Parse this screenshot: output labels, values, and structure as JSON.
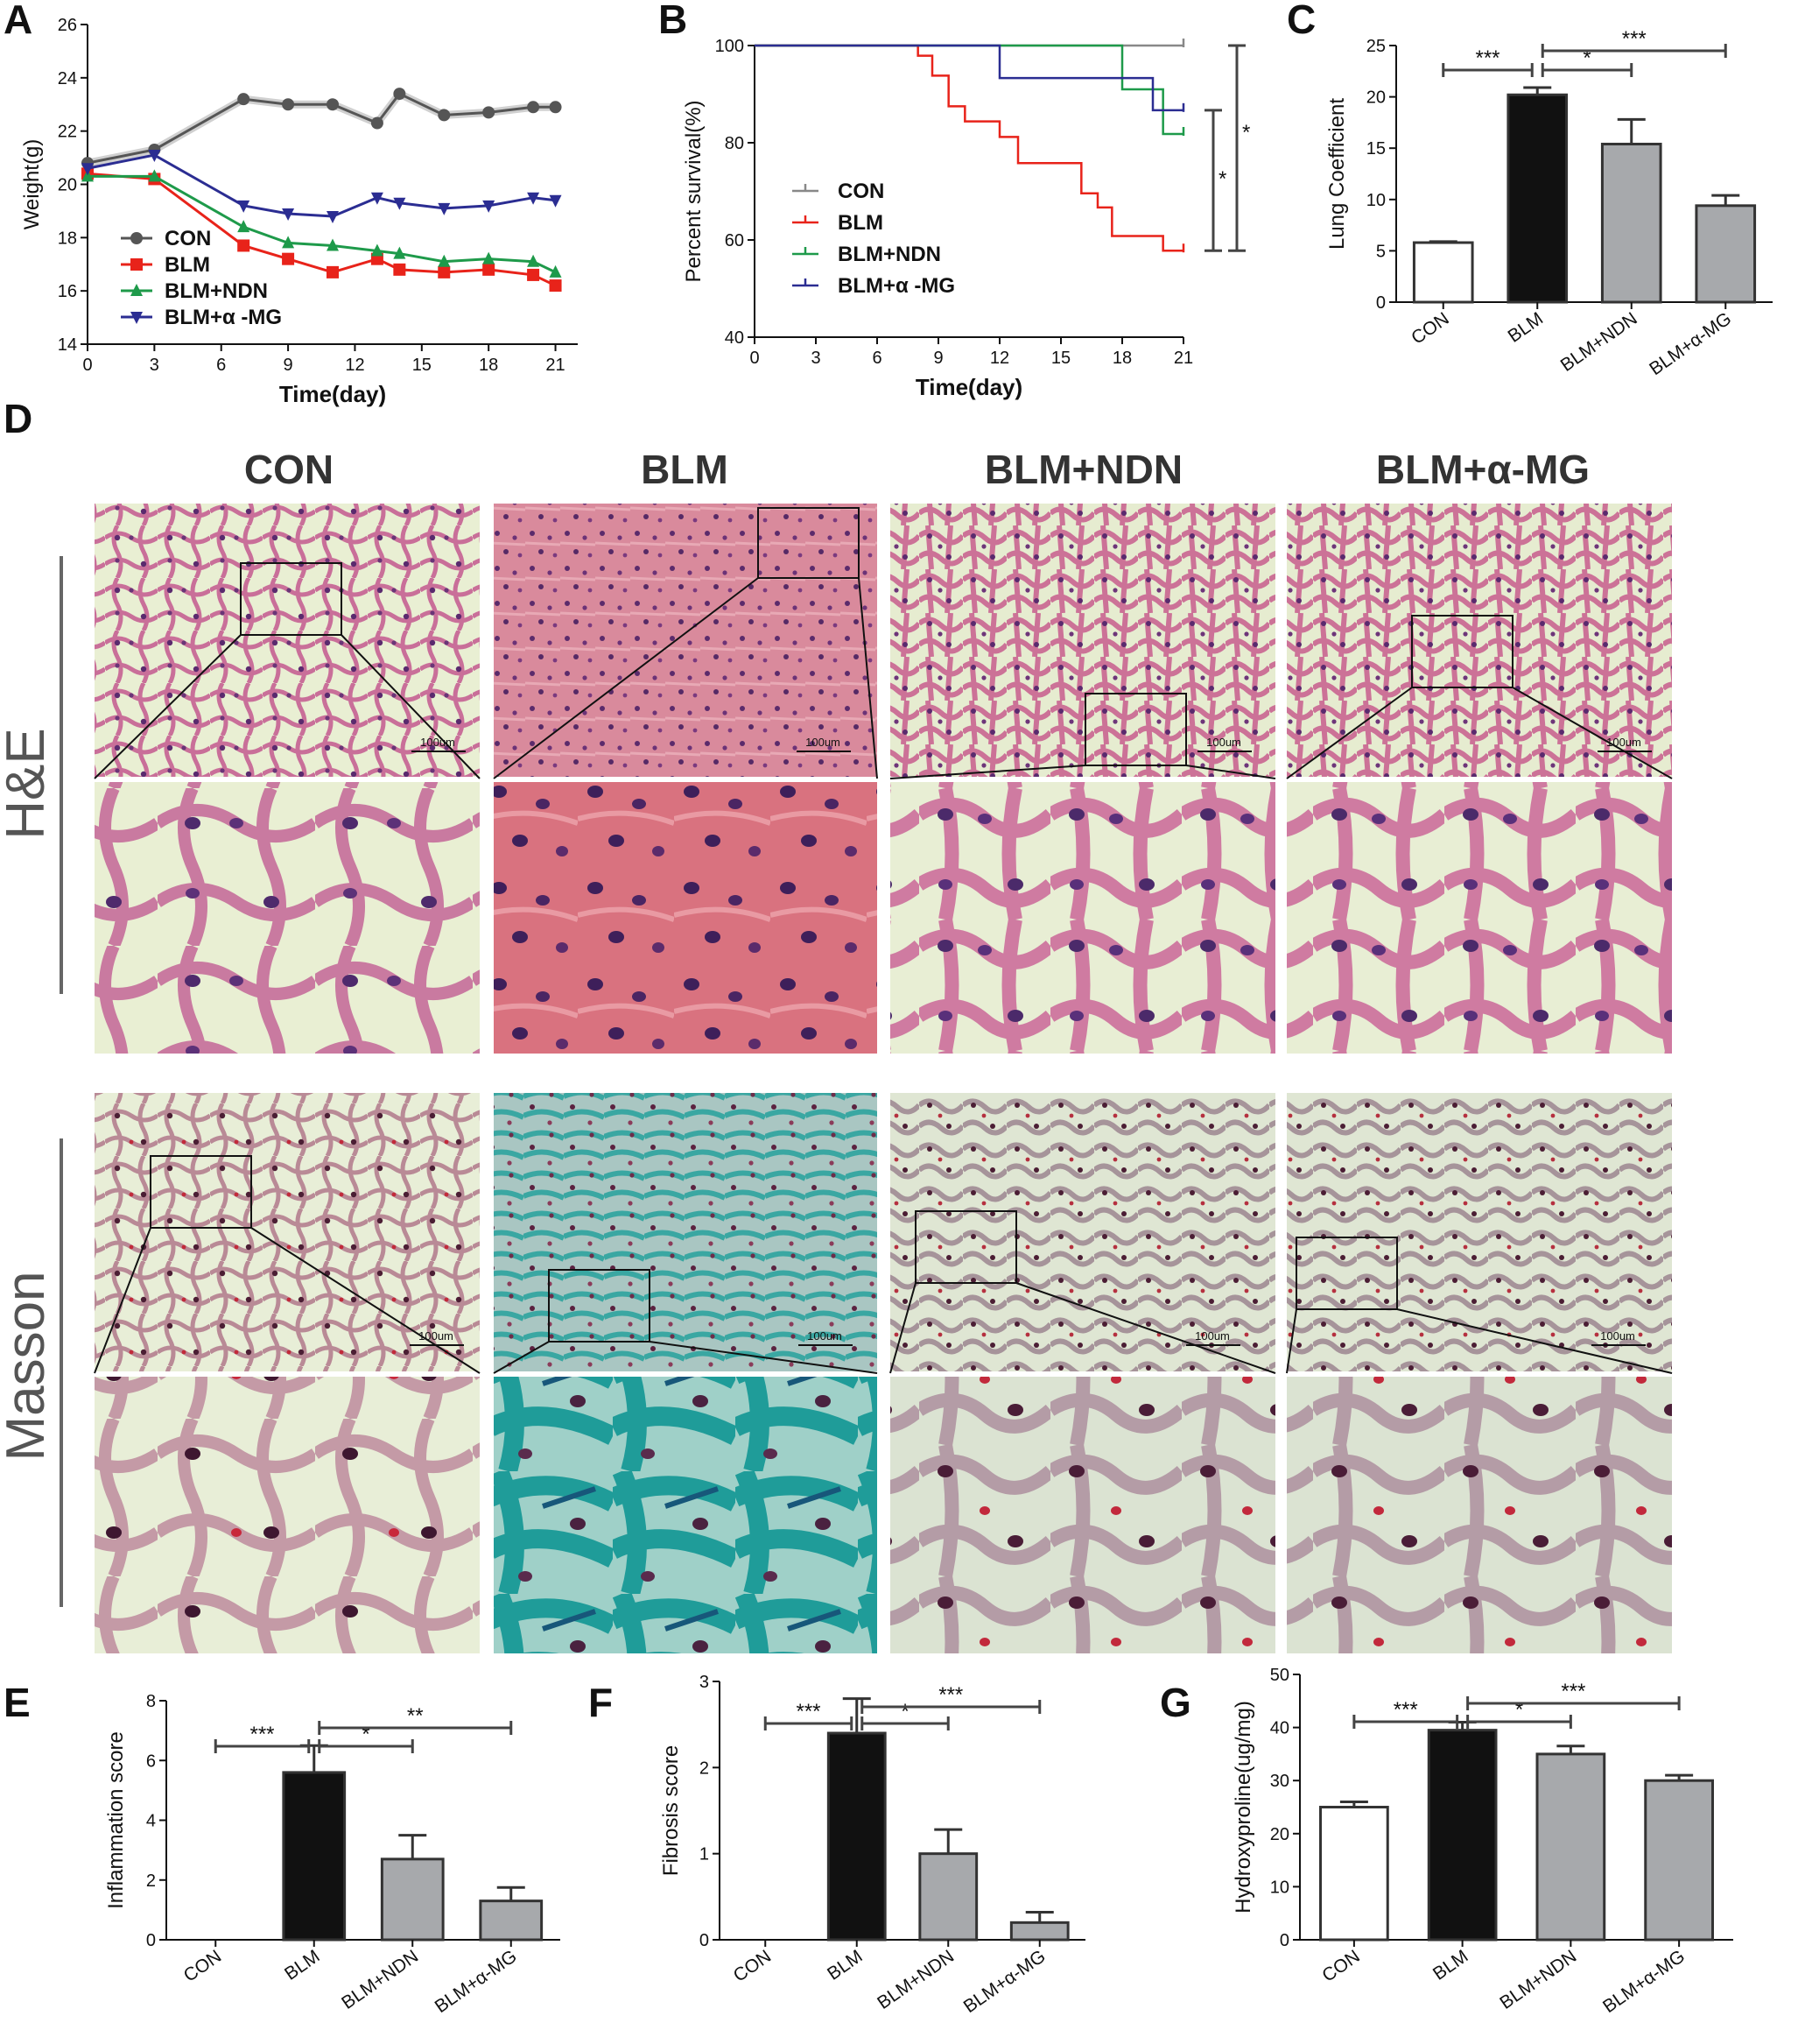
{
  "panels": {
    "A": "A",
    "B": "B",
    "C": "C",
    "D": "D",
    "E": "E",
    "F": "F",
    "G": "G"
  },
  "histology": {
    "columns": [
      "CON",
      "BLM",
      "BLM+NDN",
      "BLM+α-MG"
    ],
    "rows": [
      "H&E",
      "Masson"
    ],
    "scale_bar": "100um"
  },
  "chart_data": [
    {
      "id": "A",
      "type": "line",
      "xlabel": "Time(day)",
      "ylabel": "Weight(g)",
      "xlim": [
        0,
        22
      ],
      "ylim": [
        14,
        26
      ],
      "xticks": [
        0,
        3,
        6,
        9,
        12,
        15,
        18,
        21
      ],
      "yticks": [
        14,
        16,
        18,
        20,
        22,
        24,
        26
      ],
      "legend_position": "lower-left",
      "x": [
        0,
        3,
        7,
        9,
        11,
        13,
        14,
        16,
        18,
        20,
        21
      ],
      "series": [
        {
          "name": "CON",
          "color": "#555555",
          "marker": "circle",
          "values": [
            20.8,
            21.3,
            23.2,
            23.0,
            23.0,
            22.3,
            23.4,
            22.6,
            22.7,
            22.9,
            22.9
          ]
        },
        {
          "name": "BLM",
          "color": "#e8231a",
          "marker": "square",
          "values": [
            20.4,
            20.2,
            17.7,
            17.2,
            16.7,
            17.2,
            16.8,
            16.7,
            16.8,
            16.6,
            16.2
          ]
        },
        {
          "name": "BLM+NDN",
          "color": "#1e9a4a",
          "marker": "triangle-up",
          "values": [
            20.3,
            20.3,
            18.4,
            17.8,
            17.7,
            17.5,
            17.4,
            17.1,
            17.2,
            17.1,
            16.7
          ]
        },
        {
          "name": "BLM+α -MG",
          "color": "#2b2d92",
          "marker": "triangle-down",
          "values": [
            20.6,
            21.1,
            19.2,
            18.9,
            18.8,
            19.5,
            19.3,
            19.1,
            19.2,
            19.5,
            19.4
          ]
        }
      ]
    },
    {
      "id": "B",
      "type": "line",
      "step": true,
      "xlabel": "Time(day)",
      "ylabel": "Percent survival(%)",
      "xlim": [
        0,
        21
      ],
      "ylim": [
        40,
        100
      ],
      "xticks": [
        0,
        3,
        6,
        9,
        12,
        15,
        18,
        21
      ],
      "yticks": [
        40,
        60,
        80,
        100
      ],
      "legend_position": "lower-left",
      "series": [
        {
          "name": "CON",
          "color": "#888888",
          "points": [
            [
              0,
              100
            ],
            [
              21,
              100
            ]
          ]
        },
        {
          "name": "BLM",
          "color": "#e8231a",
          "points": [
            [
              0,
              100
            ],
            [
              8,
              100
            ],
            [
              8,
              97.9
            ],
            [
              8.7,
              97.9
            ],
            [
              8.7,
              93.8
            ],
            [
              9.5,
              93.8
            ],
            [
              9.5,
              87.5
            ],
            [
              10.3,
              87.5
            ],
            [
              10.3,
              84.4
            ],
            [
              12,
              84.4
            ],
            [
              12,
              81.2
            ],
            [
              12.9,
              81.2
            ],
            [
              12.9,
              75.8
            ],
            [
              16,
              75.8
            ],
            [
              16,
              69.6
            ],
            [
              16.8,
              69.6
            ],
            [
              16.8,
              66.7
            ],
            [
              17.5,
              66.7
            ],
            [
              17.5,
              60.8
            ],
            [
              20,
              60.8
            ],
            [
              20,
              57.8
            ],
            [
              21,
              57.8
            ]
          ]
        },
        {
          "name": "BLM+NDN",
          "color": "#1e9a4a",
          "points": [
            [
              0,
              100
            ],
            [
              18,
              100
            ],
            [
              18,
              91
            ],
            [
              20,
              91
            ],
            [
              20,
              81.8
            ],
            [
              21,
              81.8
            ]
          ]
        },
        {
          "name": "BLM+α -MG",
          "color": "#2b2d92",
          "points": [
            [
              0,
              100
            ],
            [
              12,
              100
            ],
            [
              12,
              93.3
            ],
            [
              19.5,
              93.3
            ],
            [
              19.5,
              86.7
            ],
            [
              21,
              86.7
            ]
          ]
        }
      ],
      "annotations": [
        "*",
        "*"
      ]
    },
    {
      "id": "C",
      "type": "bar",
      "ylabel": "Lung Coefficient",
      "ylim": [
        0,
        25
      ],
      "yticks": [
        0,
        5,
        10,
        15,
        20,
        25
      ],
      "categories": [
        "CON",
        "BLM",
        "BLM+NDN",
        "BLM+α-MG"
      ],
      "values": [
        5.8,
        20.2,
        15.4,
        9.4
      ],
      "errors": [
        0.1,
        0.7,
        2.4,
        1.0
      ],
      "fills": [
        "#ffffff",
        "#111111",
        "#a7a9ac",
        "#a7a9ac"
      ],
      "significance": [
        "***",
        "*",
        "***"
      ]
    },
    {
      "id": "E",
      "type": "bar",
      "ylabel": "Inflammation score",
      "ylim": [
        0,
        8
      ],
      "yticks": [
        0,
        2,
        4,
        6,
        8
      ],
      "categories": [
        "CON",
        "BLM",
        "BLM+NDN",
        "BLM+α-MG"
      ],
      "values": [
        0,
        5.6,
        2.7,
        1.3
      ],
      "errors": [
        0,
        0.9,
        0.8,
        0.45
      ],
      "fills": [
        "#ffffff",
        "#111111",
        "#a7a9ac",
        "#a7a9ac"
      ],
      "significance": [
        "***",
        "*",
        "**"
      ]
    },
    {
      "id": "F",
      "type": "bar",
      "ylabel": "Fibrosis score",
      "ylim": [
        0,
        3
      ],
      "yticks": [
        0,
        1,
        2,
        3
      ],
      "categories": [
        "CON",
        "BLM",
        "BLM+NDN",
        "BLM+α-MG"
      ],
      "values": [
        0,
        2.4,
        1.0,
        0.2
      ],
      "errors": [
        0,
        0.4,
        0.28,
        0.12
      ],
      "fills": [
        "#ffffff",
        "#111111",
        "#a7a9ac",
        "#a7a9ac"
      ],
      "significance": [
        "***",
        "*",
        "***"
      ]
    },
    {
      "id": "G",
      "type": "bar",
      "ylabel": "Hydroxyproline(ug/mg)",
      "ylim": [
        0,
        50
      ],
      "yticks": [
        0,
        10,
        20,
        30,
        40,
        50
      ],
      "categories": [
        "CON",
        "BLM",
        "BLM+NDN",
        "BLM+α-MG"
      ],
      "values": [
        25,
        39.5,
        35,
        30
      ],
      "errors": [
        1.0,
        1.5,
        1.5,
        1.0
      ],
      "fills": [
        "#ffffff",
        "#111111",
        "#a7a9ac",
        "#a7a9ac"
      ],
      "significance": [
        "***",
        "*",
        "***"
      ]
    }
  ]
}
